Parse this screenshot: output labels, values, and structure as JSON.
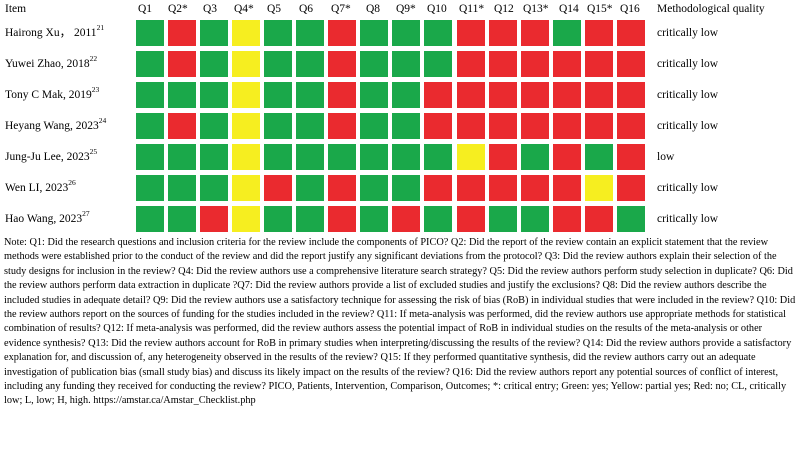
{
  "table": {
    "item_header": "Item",
    "question_headers": [
      "Q1",
      "Q2*",
      "Q3",
      "Q4*",
      "Q5",
      "Q6",
      "Q7*",
      "Q8",
      "Q9*",
      "Q10",
      "Q11*",
      "Q12",
      "Q13*",
      "Q14",
      "Q15*",
      "Q16"
    ],
    "quality_header": "Methodological quality",
    "colors": {
      "yes": "#1aa84a",
      "partial_yes": "#f6ee20",
      "no": "#ea2a2f"
    },
    "rows": [
      {
        "study": "Hairong Xu，  2011",
        "ref": "21",
        "quality": "critically low",
        "ratings": [
          "yes",
          "no",
          "yes",
          "partial",
          "yes",
          "yes",
          "no",
          "yes",
          "yes",
          "yes",
          "no",
          "no",
          "no",
          "yes",
          "no",
          "no"
        ]
      },
      {
        "study": "Yuwei Zhao, 2018",
        "ref": "22",
        "quality": "critically low",
        "ratings": [
          "yes",
          "no",
          "yes",
          "partial",
          "yes",
          "yes",
          "no",
          "yes",
          "yes",
          "yes",
          "no",
          "no",
          "no",
          "no",
          "no",
          "no"
        ]
      },
      {
        "study": "Tony C Mak, 2019",
        "ref": "23",
        "quality": "critically low",
        "ratings": [
          "yes",
          "yes",
          "yes",
          "partial",
          "yes",
          "yes",
          "no",
          "yes",
          "yes",
          "no",
          "no",
          "no",
          "no",
          "no",
          "no",
          "no"
        ]
      },
      {
        "study": "Heyang Wang, 2023",
        "ref": "24",
        "quality": "critically low",
        "ratings": [
          "yes",
          "no",
          "yes",
          "partial",
          "yes",
          "yes",
          "no",
          "yes",
          "yes",
          "no",
          "no",
          "no",
          "no",
          "no",
          "no",
          "no"
        ]
      },
      {
        "study": "Jung-Ju Lee, 2023",
        "ref": "25",
        "quality": "low",
        "ratings": [
          "yes",
          "yes",
          "yes",
          "partial",
          "yes",
          "yes",
          "yes",
          "yes",
          "yes",
          "yes",
          "partial",
          "no",
          "yes",
          "no",
          "yes",
          "no"
        ]
      },
      {
        "study": "Wen LI, 2023",
        "ref": "26",
        "quality": "critically low",
        "ratings": [
          "yes",
          "yes",
          "yes",
          "partial",
          "no",
          "yes",
          "no",
          "yes",
          "yes",
          "no",
          "no",
          "no",
          "no",
          "no",
          "partial",
          "no"
        ]
      },
      {
        "study": "Hao Wang, 2023",
        "ref": "27",
        "quality": "critically low",
        "ratings": [
          "yes",
          "yes",
          "no",
          "partial",
          "yes",
          "yes",
          "no",
          "yes",
          "no",
          "yes",
          "no",
          "yes",
          "yes",
          "no",
          "no",
          "yes"
        ]
      }
    ]
  },
  "note": "Note: Q1: Did the research questions and inclusion criteria for the review include the components of PICO? Q2: Did the report of the review contain an explicit statement that the review methods were established prior to the conduct of the review and did the report justify any significant deviations from the protocol? Q3: Did the review authors explain their selection of the study designs for inclusion in the review? Q4: Did the review authors use a comprehensive literature search strategy? Q5: Did the review authors perform study selection in duplicate? Q6: Did the review authors perform data extraction in duplicate ?Q7: Did the review authors provide a list of excluded studies and justify the exclusions? Q8: Did the review authors describe the included studies in adequate detail? Q9: Did the review authors use a satisfactory technique for assessing the risk of bias (RoB) in individual studies that were included in the review? Q10: Did the review authors report on the sources of funding for the studies included in the review? Q11: If meta-analysis was performed, did the review authors use appropriate methods for statistical combination of results? Q12: If meta-analysis was performed, did the review authors assess the potential impact of RoB in individual studies on the results of the meta-analysis or other evidence synthesis? Q13: Did the review authors account for RoB in primary studies when interpreting/discussing the results of the review? Q14: Did the review authors provide a satisfactory explanation for, and discussion of, any heterogeneity observed in the results of the review? Q15: If they performed quantitative synthesis, did the review authors carry out an adequate investigation of publication bias (small study bias) and discuss its likely impact on the results of the review? Q16: Did the review authors report any potential sources of conflict of interest, including any funding they received for conducting the review? PICO, Patients, Intervention, Comparison, Outcomes; *: critical entry; Green: yes; Yellow: partial yes; Red: no; CL, critically low; L, low; H, high. https://amstar.ca/Amstar_Checklist.php"
}
